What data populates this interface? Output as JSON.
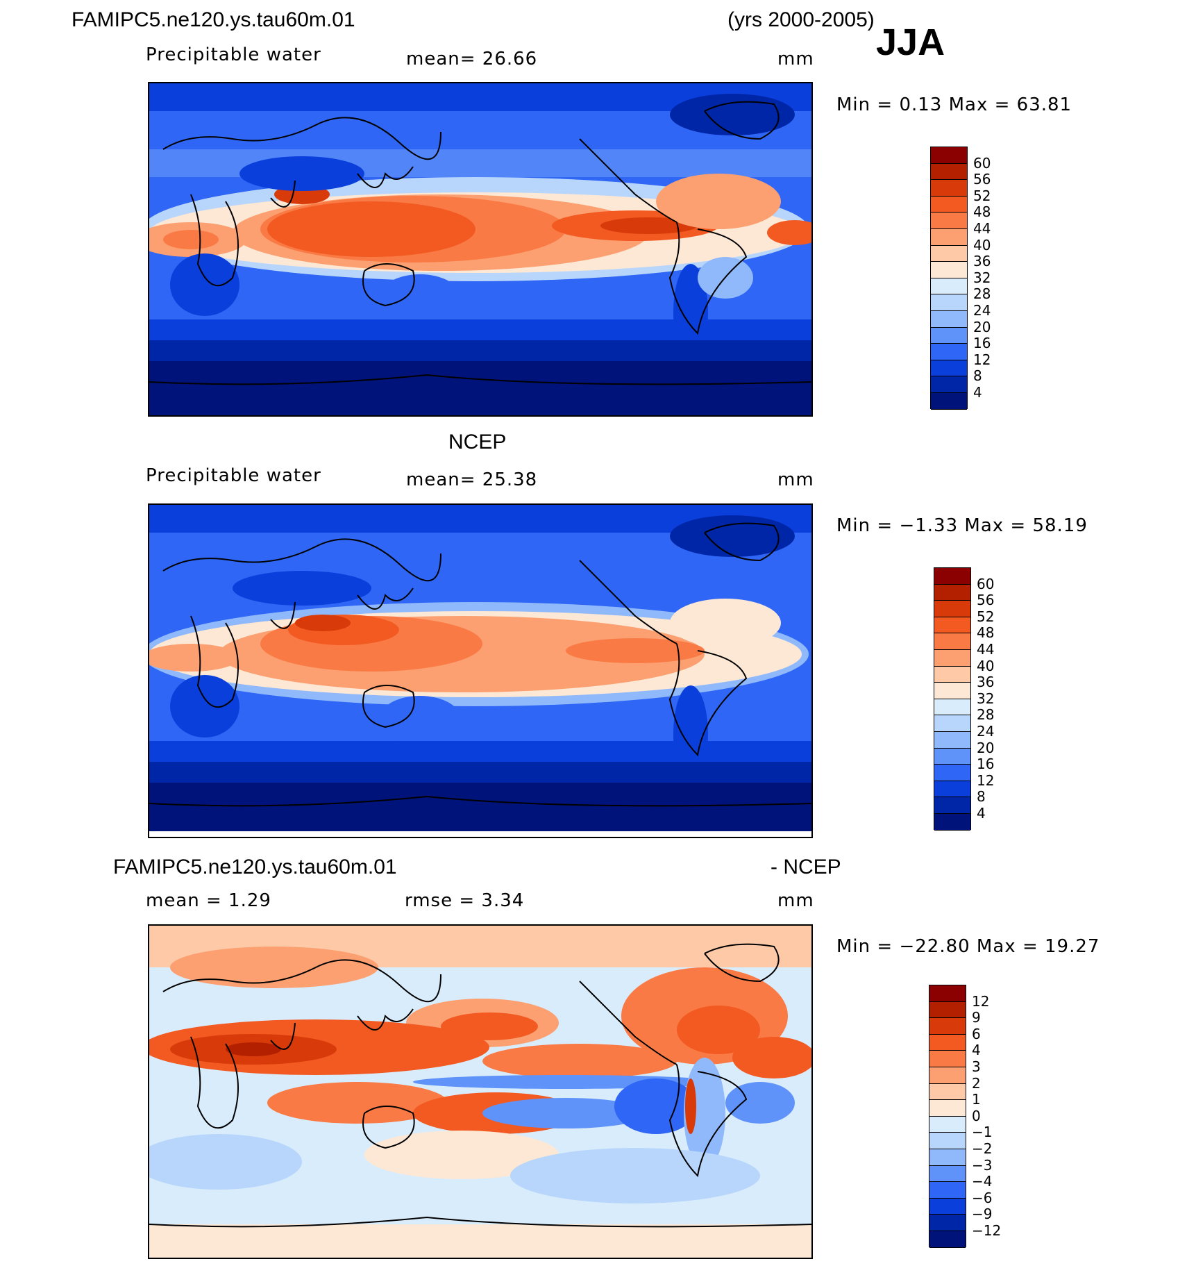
{
  "header": {
    "case_name": "FAMIPC5.ne120.ys.tau60m.01",
    "years": "(yrs 2000-2005)",
    "season": "JJA"
  },
  "panels": [
    {
      "id": "model",
      "title": "",
      "variable": "Precipitable water",
      "mean_text": "mean=   26.66",
      "units": "mm",
      "minmax_text": "Min =    0.13 Max =   63.81",
      "levels": [
        "60",
        "56",
        "52",
        "48",
        "44",
        "40",
        "36",
        "32",
        "28",
        "24",
        "20",
        "16",
        "12",
        "8",
        "4"
      ]
    },
    {
      "id": "obs",
      "title": "NCEP",
      "variable": "Precipitable water",
      "mean_text": "mean=   25.38",
      "units": "mm",
      "minmax_text": "Min =  −1.33 Max =   58.19",
      "levels": [
        "60",
        "56",
        "52",
        "48",
        "44",
        "40",
        "36",
        "32",
        "28",
        "24",
        "20",
        "16",
        "12",
        "8",
        "4"
      ]
    },
    {
      "id": "diff",
      "title_left": "FAMIPC5.ne120.ys.tau60m.01",
      "title_right": "- NCEP",
      "mean_text": "mean =    1.29",
      "rmse_text": "rmse =    3.34",
      "units": "mm",
      "minmax_text": "Min = −22.80 Max =   19.27",
      "levels": [
        "12",
        "9",
        "6",
        "4",
        "3",
        "2",
        "1",
        "0",
        "−1",
        "−2",
        "−3",
        "−4",
        "−6",
        "−9",
        "−12"
      ]
    }
  ],
  "palettes": {
    "abs": [
      "#8b0000",
      "#b22000",
      "#d93a0a",
      "#f25a22",
      "#fa7a45",
      "#fca071",
      "#fdc9a6",
      "#fde8d5",
      "#d9ecfb",
      "#b8d6fb",
      "#8fb9fb",
      "#5f93fa",
      "#2f66f5",
      "#0b3fdc",
      "#0026a8",
      "#00137a"
    ],
    "diff": [
      "#8b0000",
      "#b22000",
      "#d93a0a",
      "#f25a22",
      "#fa7a45",
      "#fca071",
      "#fdc9a6",
      "#fde8d5",
      "#d9ecfb",
      "#b8d6fb",
      "#8fb9fb",
      "#5f93fa",
      "#2f66f5",
      "#0b3fdc",
      "#0026a8",
      "#00137a"
    ]
  }
}
